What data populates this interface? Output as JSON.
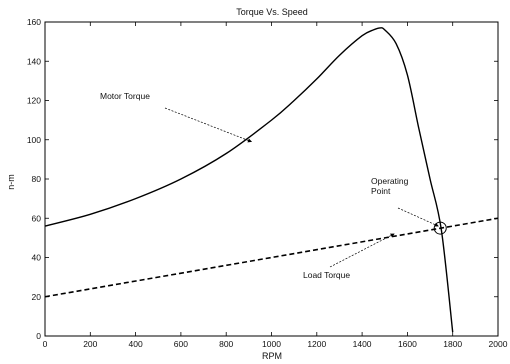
{
  "chart_data": {
    "type": "line",
    "title": "Torque Vs. Speed",
    "xlabel": "RPM",
    "ylabel": "n-m",
    "xlim": [
      0,
      2000
    ],
    "ylim": [
      0,
      160
    ],
    "grid": false,
    "xticks": [
      0,
      200,
      400,
      600,
      800,
      1000,
      1200,
      1400,
      1600,
      1800,
      2000
    ],
    "yticks": [
      0,
      20,
      40,
      60,
      80,
      100,
      120,
      140,
      160
    ],
    "series": [
      {
        "name": "Motor Torque",
        "style": "solid",
        "color": "#000000",
        "x": [
          0,
          200,
          400,
          600,
          800,
          1000,
          1100,
          1200,
          1300,
          1400,
          1450,
          1480,
          1500,
          1550,
          1600,
          1650,
          1700,
          1750,
          1800
        ],
        "y": [
          56,
          62,
          70,
          80,
          93,
          110,
          120,
          131,
          143,
          153,
          156,
          157,
          156,
          149,
          133,
          106,
          80,
          54,
          2
        ]
      },
      {
        "name": "Load Torque",
        "style": "dashed",
        "color": "#000000",
        "x": [
          0,
          2000
        ],
        "y": [
          20,
          60
        ]
      }
    ],
    "annotations": [
      {
        "text": "Motor Torque",
        "target": [
          920,
          98
        ]
      },
      {
        "text": "Load Torque",
        "target": [
          1550,
          51
        ]
      },
      {
        "text": "Operating Point",
        "lines": [
          "Operating",
          "Point"
        ],
        "target": [
          1745,
          55
        ]
      }
    ],
    "marker": {
      "label": "Operating Point",
      "x": 1745,
      "y": 55,
      "shape": "circle"
    }
  }
}
